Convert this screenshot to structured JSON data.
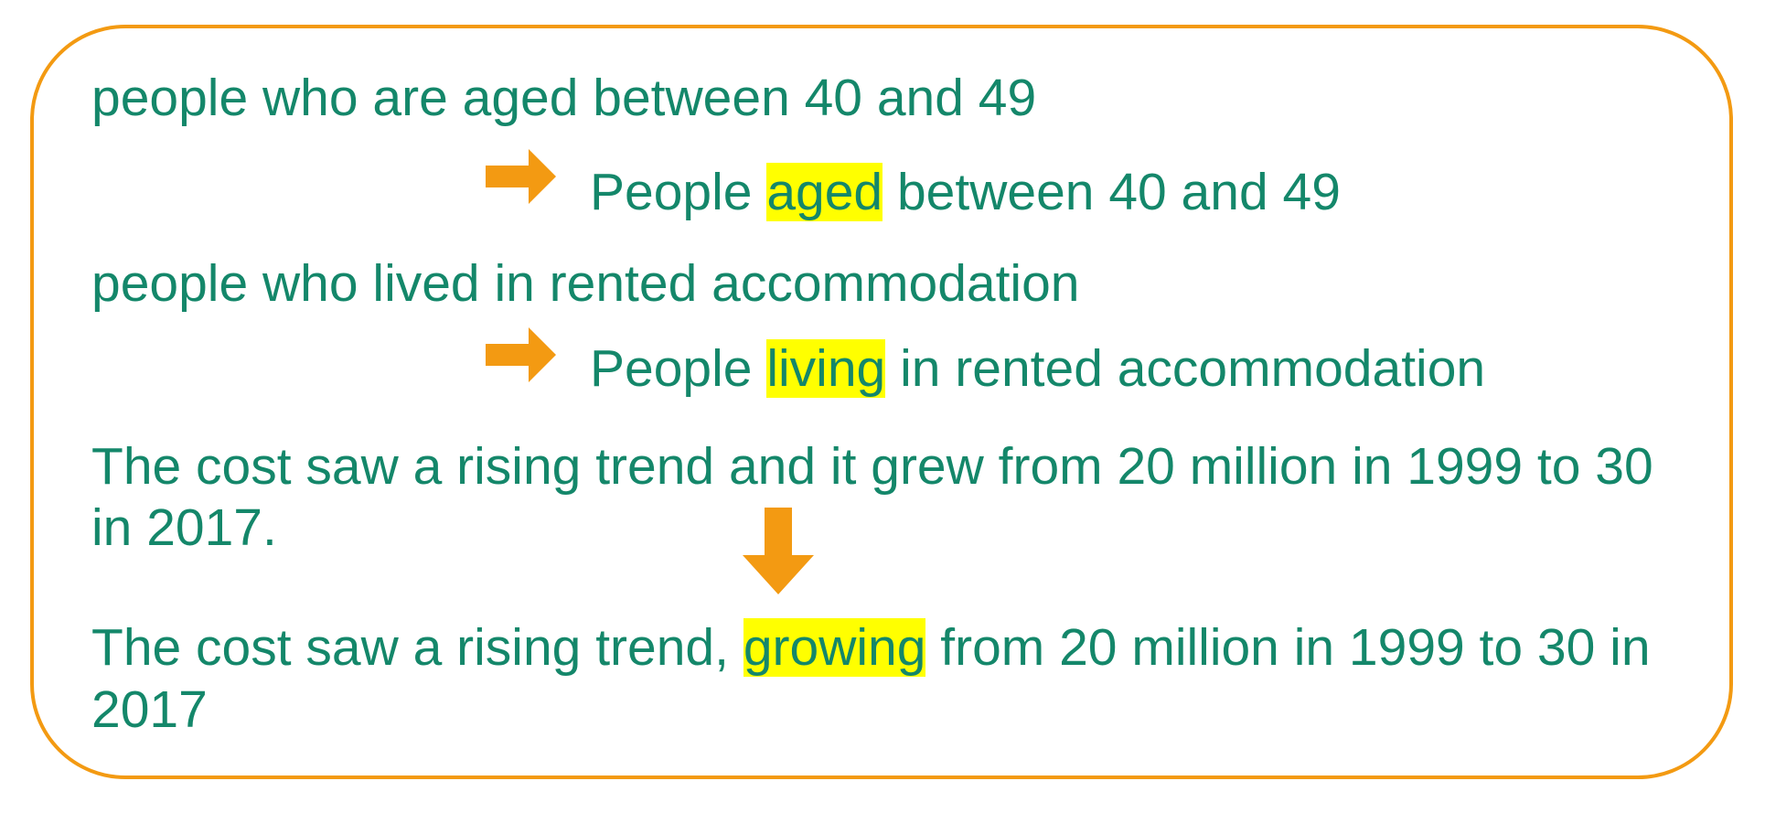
{
  "colors": {
    "text": "#14876a",
    "border": "#f39a12",
    "arrow": "#f39a12",
    "highlight": "#ffff00"
  },
  "icons": {
    "arrow_right": "arrow-right-icon",
    "arrow_down": "arrow-down-icon"
  },
  "examples": [
    {
      "original": "people who are aged between 40 and 49",
      "revised_before": "People ",
      "revised_highlight": "aged",
      "revised_after": " between 40 and 49"
    },
    {
      "original": "people who lived in rented accommodation",
      "revised_before": "People ",
      "revised_highlight": "living",
      "revised_after": " in rented accommodation"
    },
    {
      "original_line1": "The cost saw a rising trend and it grew from 20 million in 1999 to 30",
      "original_line2": "in 2017.",
      "revised_line1_before": "The cost saw a rising trend, ",
      "revised_line1_highlight": "growing",
      "revised_line1_after": " from 20 million in 1999 to 30 in",
      "revised_line2": "2017"
    }
  ]
}
